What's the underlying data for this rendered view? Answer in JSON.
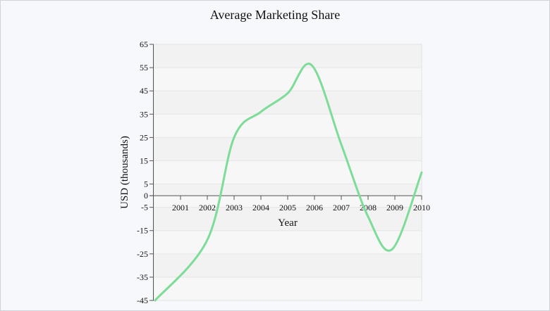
{
  "chart_data": {
    "type": "line",
    "title": "Average Marketing Share",
    "xlabel": "Year",
    "ylabel": "USD (thousands)",
    "x": [
      2000,
      2001,
      2002,
      2003,
      2004,
      2005,
      2006,
      2007,
      2008,
      2009,
      2010
    ],
    "x_ticks": [
      "2001",
      "2002",
      "2003",
      "2004",
      "2005",
      "2006",
      "2007",
      "2008",
      "2009",
      "2010"
    ],
    "y_ticks": [
      "65",
      "55",
      "45",
      "35",
      "25",
      "15",
      "5",
      "0",
      "-5",
      "-15",
      "-25",
      "-35",
      "-45"
    ],
    "series": [
      {
        "values": [
          -45,
          -19,
          25,
          36,
          44,
          56,
          22,
          -9,
          -23,
          10
        ],
        "x": [
          2000.05,
          2002,
          2003,
          2004,
          2005,
          2005.9,
          2007,
          2008,
          2008.9,
          2010
        ],
        "color": "#7ddc98"
      }
    ],
    "xlim": [
      2000,
      2010
    ],
    "ylim": [
      -45,
      65
    ],
    "grid": true,
    "band_colors": [
      "#f2f2f2",
      "#f7f7f7"
    ]
  }
}
